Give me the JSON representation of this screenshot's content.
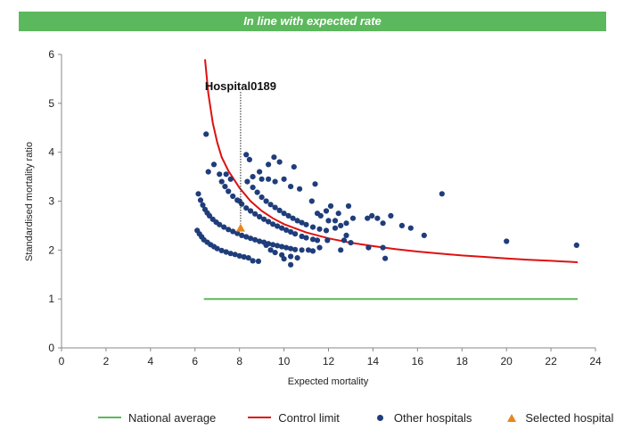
{
  "banner": {
    "text": "In line with expected rate",
    "color": "#5cb85c"
  },
  "chart_data": {
    "type": "scatter",
    "xlabel": "Expected mortality",
    "ylabel": "Standardised mortality ratio",
    "xlim": [
      0,
      24
    ],
    "ylim": [
      0,
      6
    ],
    "xticks": [
      0,
      2,
      4,
      6,
      8,
      10,
      12,
      14,
      16,
      18,
      20,
      22,
      24
    ],
    "yticks": [
      0,
      1,
      2,
      3,
      4,
      5,
      6
    ],
    "grid": false,
    "annotation": {
      "label": "Hospital0189",
      "x": 8.05,
      "y": 2.45
    },
    "series": [
      {
        "name": "National average",
        "kind": "line",
        "color": "#5cb85c",
        "x": [
          6.4,
          23.2
        ],
        "y": [
          1.0,
          1.0
        ]
      },
      {
        "name": "Control limit",
        "kind": "line",
        "color": "#dd1111",
        "x": [
          6.45,
          6.6,
          6.8,
          7.0,
          7.2,
          7.5,
          8.0,
          8.5,
          9.0,
          9.5,
          10.0,
          11.0,
          12.0,
          13.0,
          14.0,
          15.0,
          16.0,
          17.0,
          18.0,
          19.0,
          20.0,
          21.0,
          22.0,
          23.2
        ],
        "y": [
          5.9,
          5.2,
          4.6,
          4.2,
          3.9,
          3.62,
          3.27,
          3.0,
          2.8,
          2.65,
          2.53,
          2.36,
          2.24,
          2.15,
          2.08,
          2.02,
          1.97,
          1.93,
          1.89,
          1.86,
          1.83,
          1.8,
          1.78,
          1.75
        ]
      },
      {
        "name": "Other hospitals",
        "kind": "scatter",
        "color": "#1f3d7a",
        "points": [
          [
            6.1,
            2.4
          ],
          [
            6.2,
            2.33
          ],
          [
            6.3,
            2.27
          ],
          [
            6.4,
            2.21
          ],
          [
            6.55,
            2.16
          ],
          [
            6.7,
            2.11
          ],
          [
            6.85,
            2.07
          ],
          [
            7.0,
            2.03
          ],
          [
            7.2,
            1.99
          ],
          [
            7.4,
            1.96
          ],
          [
            7.6,
            1.93
          ],
          [
            7.8,
            1.91
          ],
          [
            8.0,
            1.88
          ],
          [
            8.2,
            1.86
          ],
          [
            8.4,
            1.84
          ],
          [
            8.6,
            1.78
          ],
          [
            8.85,
            1.77
          ],
          [
            6.15,
            3.15
          ],
          [
            6.25,
            3.02
          ],
          [
            6.35,
            2.92
          ],
          [
            6.45,
            2.83
          ],
          [
            6.55,
            2.76
          ],
          [
            6.65,
            2.7
          ],
          [
            6.8,
            2.63
          ],
          [
            6.95,
            2.57
          ],
          [
            7.1,
            2.52
          ],
          [
            7.3,
            2.47
          ],
          [
            7.5,
            2.42
          ],
          [
            7.7,
            2.38
          ],
          [
            7.9,
            2.34
          ],
          [
            8.1,
            2.3
          ],
          [
            8.3,
            2.27
          ],
          [
            8.5,
            2.24
          ],
          [
            8.7,
            2.21
          ],
          [
            8.9,
            2.18
          ],
          [
            9.1,
            2.16
          ],
          [
            9.3,
            2.13
          ],
          [
            9.5,
            2.11
          ],
          [
            9.7,
            2.09
          ],
          [
            9.9,
            2.07
          ],
          [
            10.1,
            2.05
          ],
          [
            10.3,
            2.03
          ],
          [
            10.5,
            2.01
          ],
          [
            10.8,
            2.0
          ],
          [
            11.1,
            2.0
          ],
          [
            11.3,
            1.98
          ],
          [
            11.6,
            2.05
          ],
          [
            7.2,
            3.4
          ],
          [
            7.35,
            3.3
          ],
          [
            7.5,
            3.2
          ],
          [
            7.7,
            3.1
          ],
          [
            7.9,
            3.02
          ],
          [
            8.1,
            2.94
          ],
          [
            8.3,
            2.86
          ],
          [
            8.5,
            2.8
          ],
          [
            8.7,
            2.74
          ],
          [
            8.9,
            2.68
          ],
          [
            9.1,
            2.63
          ],
          [
            9.3,
            2.58
          ],
          [
            9.5,
            2.53
          ],
          [
            9.7,
            2.49
          ],
          [
            9.9,
            2.45
          ],
          [
            10.1,
            2.41
          ],
          [
            10.3,
            2.37
          ],
          [
            10.5,
            2.33
          ],
          [
            10.8,
            2.28
          ],
          [
            11.0,
            2.25
          ],
          [
            11.3,
            2.22
          ],
          [
            11.5,
            2.2
          ],
          [
            8.35,
            3.4
          ],
          [
            8.6,
            3.28
          ],
          [
            8.8,
            3.18
          ],
          [
            9.0,
            3.08
          ],
          [
            9.2,
            3.0
          ],
          [
            9.4,
            2.93
          ],
          [
            9.6,
            2.87
          ],
          [
            9.8,
            2.81
          ],
          [
            10.0,
            2.75
          ],
          [
            10.2,
            2.7
          ],
          [
            10.4,
            2.65
          ],
          [
            10.6,
            2.6
          ],
          [
            10.8,
            2.56
          ],
          [
            11.0,
            2.52
          ],
          [
            11.3,
            2.47
          ],
          [
            11.6,
            2.43
          ],
          [
            11.9,
            2.4
          ],
          [
            8.0,
            3.0
          ],
          [
            9.2,
            2.1
          ],
          [
            9.4,
            2.0
          ],
          [
            9.6,
            1.95
          ],
          [
            9.9,
            1.9
          ],
          [
            10.3,
            1.87
          ],
          [
            10.6,
            1.84
          ],
          [
            10.0,
            1.82
          ],
          [
            10.3,
            1.7
          ],
          [
            6.5,
            4.37
          ],
          [
            6.6,
            3.6
          ],
          [
            6.85,
            3.75
          ],
          [
            7.1,
            3.55
          ],
          [
            7.4,
            3.55
          ],
          [
            7.6,
            3.45
          ],
          [
            8.3,
            3.95
          ],
          [
            8.45,
            3.85
          ],
          [
            8.6,
            3.5
          ],
          [
            8.9,
            3.6
          ],
          [
            9.3,
            3.75
          ],
          [
            9.55,
            3.9
          ],
          [
            9.8,
            3.8
          ],
          [
            10.45,
            3.7
          ],
          [
            9.0,
            3.45
          ],
          [
            9.3,
            3.45
          ],
          [
            9.6,
            3.4
          ],
          [
            10.0,
            3.45
          ],
          [
            10.3,
            3.3
          ],
          [
            10.7,
            3.25
          ],
          [
            11.4,
            3.35
          ],
          [
            11.25,
            3.0
          ],
          [
            11.5,
            2.75
          ],
          [
            11.65,
            2.7
          ],
          [
            12.0,
            2.6
          ],
          [
            11.9,
            2.8
          ],
          [
            12.1,
            2.9
          ],
          [
            12.3,
            2.6
          ],
          [
            12.45,
            2.75
          ],
          [
            12.55,
            2.5
          ],
          [
            12.8,
            2.55
          ],
          [
            12.9,
            2.9
          ],
          [
            13.1,
            2.65
          ],
          [
            12.7,
            2.2
          ],
          [
            12.55,
            2.0
          ],
          [
            12.8,
            2.3
          ],
          [
            13.0,
            2.15
          ],
          [
            11.95,
            2.2
          ],
          [
            12.3,
            2.45
          ],
          [
            13.75,
            2.65
          ],
          [
            13.95,
            2.7
          ],
          [
            14.2,
            2.65
          ],
          [
            14.45,
            2.55
          ],
          [
            14.8,
            2.7
          ],
          [
            13.8,
            2.05
          ],
          [
            14.45,
            2.05
          ],
          [
            14.55,
            1.83
          ],
          [
            15.3,
            2.5
          ],
          [
            15.7,
            2.45
          ],
          [
            16.3,
            2.3
          ],
          [
            17.1,
            3.15
          ],
          [
            20.0,
            2.18
          ],
          [
            23.15,
            2.1
          ]
        ]
      },
      {
        "name": "Selected hospital",
        "kind": "marker",
        "color": "#e8861c",
        "points": [
          [
            8.05,
            2.45
          ]
        ]
      }
    ]
  },
  "legend": {
    "national_average": "National average",
    "control_limit": "Control limit",
    "other_hospitals": "Other hospitals",
    "selected_hospital": "Selected hospital",
    "colors": {
      "national_average": "#5cb85c",
      "control_limit": "#dd1111",
      "other_hospitals": "#1f3d7a",
      "selected_hospital": "#e8861c"
    }
  }
}
